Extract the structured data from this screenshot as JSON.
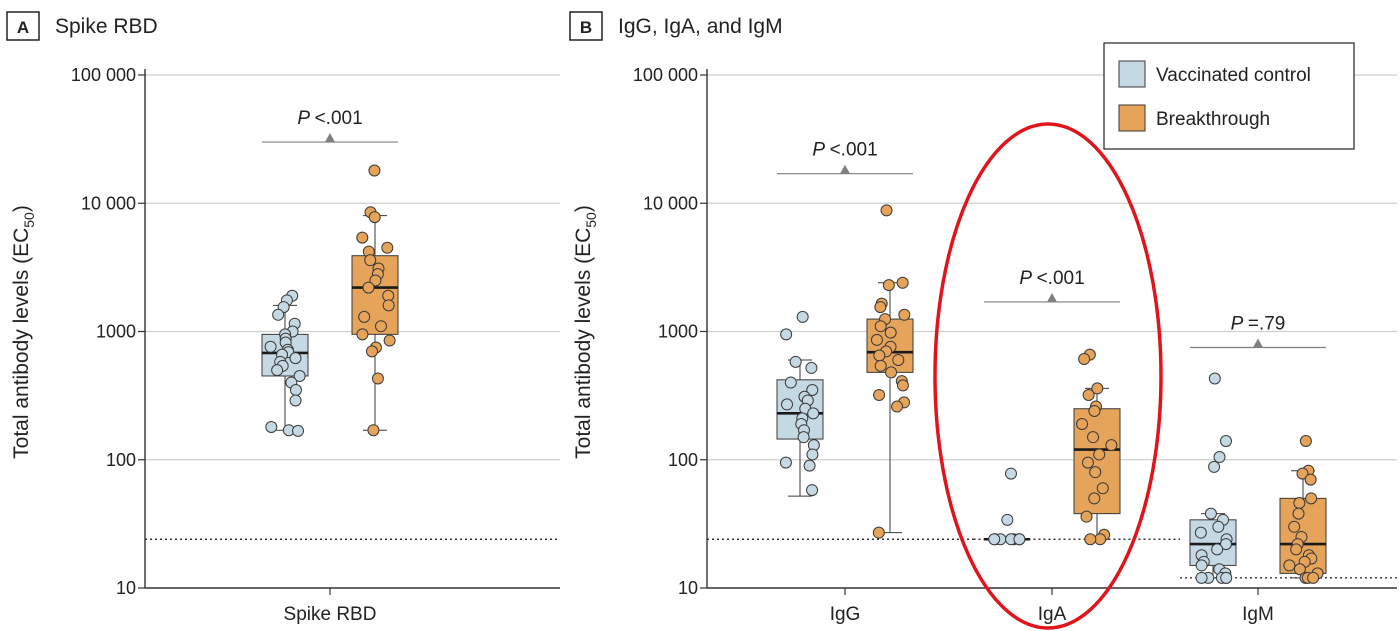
{
  "panels": [
    {
      "letter": "A",
      "title": "Spike RBD",
      "ylabel_main": "Total antibody levels (EC",
      "ylabel_sub": "50",
      "ylabel_close": ")",
      "yticks": [
        {
          "value": 10,
          "label": "10"
        },
        {
          "value": 100,
          "label": "100"
        },
        {
          "value": 1000,
          "label": "1000"
        },
        {
          "value": 10000,
          "label": "10 000"
        },
        {
          "value": 100000,
          "label": "100 000"
        }
      ]
    },
    {
      "letter": "B",
      "title": "IgG, IgA, and IgM",
      "ylabel_main": "Total antibody levels (EC",
      "ylabel_sub": "50",
      "ylabel_close": ")",
      "yticks": [
        {
          "value": 10,
          "label": "10"
        },
        {
          "value": 100,
          "label": "100"
        },
        {
          "value": 1000,
          "label": "1000"
        },
        {
          "value": 10000,
          "label": "10 000"
        },
        {
          "value": 100000,
          "label": "100 000"
        }
      ]
    }
  ],
  "legend": {
    "items": [
      {
        "label": "Vaccinated control",
        "color": "#c5d9e4"
      },
      {
        "label": "Breakthrough",
        "color": "#e6a35a"
      }
    ]
  },
  "colors": {
    "control_fill": "#c5d9e4",
    "breakthrough_fill": "#e6a35a",
    "outline": "#3a3a3a",
    "grid": "#cfcfcf",
    "pbar": "#808080",
    "highlight": "#e0141b"
  },
  "chart_data": [
    {
      "type": "box",
      "panel": "A",
      "scale": "log",
      "ylim": [
        10,
        100000
      ],
      "grid": true,
      "limit_of_detection": 24,
      "categories": [
        "Spike RBD"
      ],
      "series": [
        {
          "name": "Vaccinated control",
          "category": "Spike RBD",
          "box": {
            "min": 170,
            "q1": 450,
            "median": 680,
            "q3": 950,
            "max": 1600
          },
          "points": [
            1900,
            1750,
            1550,
            1350,
            1150,
            1000,
            950,
            880,
            820,
            760,
            720,
            690,
            660,
            620,
            580,
            540,
            500,
            450,
            400,
            350,
            290,
            180,
            170,
            168
          ]
        },
        {
          "name": "Breakthrough",
          "category": "Spike RBD",
          "box": {
            "min": 170,
            "q1": 950,
            "median": 2200,
            "q3": 3900,
            "max": 8000
          },
          "points": [
            18000,
            8500,
            7800,
            5400,
            4500,
            4200,
            3600,
            3100,
            2800,
            2500,
            2200,
            1900,
            1600,
            1300,
            1100,
            950,
            850,
            750,
            700,
            430,
            170
          ]
        }
      ],
      "annotations": [
        {
          "category": "Spike RBD",
          "text": "P <.001",
          "y": 30000
        }
      ]
    },
    {
      "type": "box",
      "panel": "B",
      "scale": "log",
      "ylim": [
        10,
        100000
      ],
      "grid": true,
      "limit_of_detection": {
        "IgG": 24,
        "IgA": 24,
        "IgM": 12
      },
      "categories": [
        "IgG",
        "IgA",
        "IgM"
      ],
      "series": [
        {
          "name": "Vaccinated control",
          "category": "IgG",
          "box": {
            "min": 52,
            "q1": 145,
            "median": 230,
            "q3": 420,
            "max": 600
          },
          "points": [
            1300,
            950,
            580,
            520,
            400,
            350,
            310,
            290,
            270,
            250,
            230,
            210,
            190,
            170,
            150,
            130,
            110,
            95,
            90,
            58
          ]
        },
        {
          "name": "Breakthrough",
          "category": "IgG",
          "box": {
            "min": 27,
            "q1": 480,
            "median": 690,
            "q3": 1250,
            "max": 2400
          },
          "points": [
            8800,
            2400,
            2300,
            1650,
            1550,
            1350,
            1250,
            1100,
            980,
            860,
            760,
            700,
            650,
            600,
            540,
            480,
            410,
            380,
            320,
            280,
            260,
            27
          ]
        },
        {
          "name": "Vaccinated control",
          "category": "IgA",
          "box": {
            "min": 24,
            "q1": 24,
            "median": 24,
            "q3": 24,
            "max": 24
          },
          "points": [
            78,
            34,
            24,
            24,
            24,
            24,
            24,
            24,
            24,
            24
          ]
        },
        {
          "name": "Breakthrough",
          "category": "IgA",
          "box": {
            "min": 24,
            "q1": 38,
            "median": 120,
            "q3": 250,
            "max": 360
          },
          "points": [
            660,
            610,
            360,
            320,
            260,
            240,
            190,
            150,
            130,
            110,
            95,
            80,
            60,
            50,
            36,
            26,
            24,
            24
          ]
        },
        {
          "name": "Vaccinated control",
          "category": "IgM",
          "box": {
            "min": 12,
            "q1": 15,
            "median": 22,
            "q3": 34,
            "max": 38
          },
          "points": [
            430,
            140,
            105,
            88,
            38,
            34,
            30,
            27,
            24,
            22,
            20,
            18,
            16,
            15,
            14,
            13,
            12,
            12,
            12,
            12,
            12
          ]
        },
        {
          "name": "Breakthrough",
          "category": "IgM",
          "box": {
            "min": 12,
            "q1": 13,
            "median": 22,
            "q3": 50,
            "max": 82
          },
          "points": [
            140,
            82,
            78,
            70,
            50,
            46,
            38,
            30,
            25,
            22,
            20,
            18,
            17,
            16,
            15,
            14,
            13,
            12,
            12,
            12
          ]
        }
      ],
      "annotations": [
        {
          "category": "IgG",
          "text": "P <.001",
          "y": 17000
        },
        {
          "category": "IgA",
          "text": "P <.001",
          "y": 1700
        },
        {
          "category": "IgM",
          "text": "P =.79",
          "y": 750
        }
      ]
    }
  ]
}
